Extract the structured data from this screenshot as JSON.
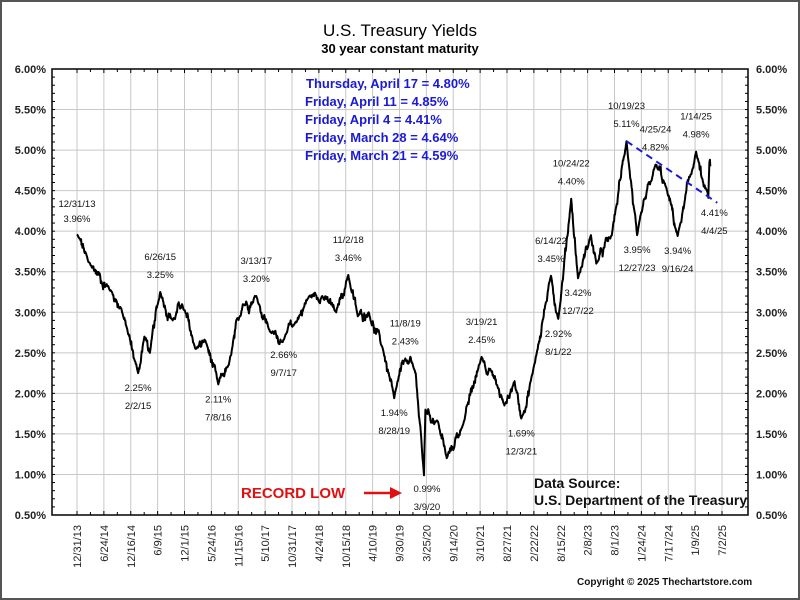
{
  "chart_data": {
    "type": "line",
    "title": "U.S. Treasury Yields",
    "subtitle": "30 year constant maturity",
    "xlabel": "",
    "ylabel": "",
    "ylim": [
      0.5,
      6.0
    ],
    "yticks": [
      "6.00%",
      "5.50%",
      "5.00%",
      "4.50%",
      "4.00%",
      "3.50%",
      "3.00%",
      "2.50%",
      "2.00%",
      "1.50%",
      "1.00%",
      "0.50%"
    ],
    "xticks": [
      "12/31/13",
      "6/24/14",
      "12/16/14",
      "6/9/15",
      "12/1/15",
      "5/24/16",
      "11/15/16",
      "5/10/17",
      "10/31/17",
      "4/24/18",
      "10/15/18",
      "4/10/19",
      "9/30/19",
      "3/25/20",
      "9/14/20",
      "3/10/21",
      "8/27/21",
      "2/22/22",
      "8/15/22",
      "2/8/23",
      "8/1/23",
      "1/24/24",
      "7/17/24",
      "1/9/25",
      "7/2/25"
    ],
    "grid": true,
    "series": [
      {
        "name": "30 year constant maturity yield (%)",
        "color": "#000000",
        "points": [
          {
            "date": "12/31/13",
            "value": 3.96
          },
          {
            "date": "3/15/14",
            "value": 3.62
          },
          {
            "date": "8/15/14",
            "value": 3.25
          },
          {
            "date": "10/15/14",
            "value": 3.05
          },
          {
            "date": "2/2/15",
            "value": 2.25
          },
          {
            "date": "3/15/15",
            "value": 2.7
          },
          {
            "date": "4/20/15",
            "value": 2.5
          },
          {
            "date": "6/26/15",
            "value": 3.25
          },
          {
            "date": "9/15/15",
            "value": 2.9
          },
          {
            "date": "11/15/15",
            "value": 3.1
          },
          {
            "date": "2/10/16",
            "value": 2.55
          },
          {
            "date": "4/15/16",
            "value": 2.65
          },
          {
            "date": "7/8/16",
            "value": 2.11
          },
          {
            "date": "9/15/16",
            "value": 2.35
          },
          {
            "date": "12/15/16",
            "value": 3.1
          },
          {
            "date": "3/13/17",
            "value": 3.2
          },
          {
            "date": "6/15/17",
            "value": 2.75
          },
          {
            "date": "9/7/17",
            "value": 2.66
          },
          {
            "date": "11/15/17",
            "value": 2.85
          },
          {
            "date": "2/21/18",
            "value": 3.2
          },
          {
            "date": "5/17/18",
            "value": 3.2
          },
          {
            "date": "8/15/18",
            "value": 3.0
          },
          {
            "date": "11/2/18",
            "value": 3.46
          },
          {
            "date": "1/3/19",
            "value": 2.95
          },
          {
            "date": "3/15/19",
            "value": 3.0
          },
          {
            "date": "6/15/19",
            "value": 2.55
          },
          {
            "date": "8/28/19",
            "value": 1.94
          },
          {
            "date": "11/8/19",
            "value": 2.43
          },
          {
            "date": "1/15/20",
            "value": 2.25
          },
          {
            "date": "3/9/20",
            "value": 0.99
          },
          {
            "date": "3/18/20",
            "value": 1.8
          },
          {
            "date": "6/8/20",
            "value": 1.65
          },
          {
            "date": "8/4/20",
            "value": 1.2
          },
          {
            "date": "11/15/20",
            "value": 1.6
          },
          {
            "date": "3/19/21",
            "value": 2.45
          },
          {
            "date": "5/15/21",
            "value": 2.3
          },
          {
            "date": "8/15/21",
            "value": 1.85
          },
          {
            "date": "10/20/21",
            "value": 2.15
          },
          {
            "date": "12/3/21",
            "value": 1.69
          },
          {
            "date": "2/15/22",
            "value": 2.25
          },
          {
            "date": "6/14/22",
            "value": 3.45
          },
          {
            "date": "8/1/22",
            "value": 2.92
          },
          {
            "date": "10/24/22",
            "value": 4.4
          },
          {
            "date": "12/7/22",
            "value": 3.42
          },
          {
            "date": "3/1/23",
            "value": 3.95
          },
          {
            "date": "4/5/23",
            "value": 3.6
          },
          {
            "date": "7/15/23",
            "value": 3.95
          },
          {
            "date": "10/19/23",
            "value": 5.11
          },
          {
            "date": "12/27/23",
            "value": 3.95
          },
          {
            "date": "4/25/24",
            "value": 4.82
          },
          {
            "date": "7/1/24",
            "value": 4.55
          },
          {
            "date": "9/16/24",
            "value": 3.94
          },
          {
            "date": "1/14/25",
            "value": 4.98
          },
          {
            "date": "3/5/25",
            "value": 4.55
          },
          {
            "date": "4/4/25",
            "value": 4.41
          },
          {
            "date": "4/11/25",
            "value": 4.85
          },
          {
            "date": "4/17/25",
            "value": 4.8
          }
        ]
      }
    ],
    "trendline": {
      "from": {
        "date": "10/19/23",
        "value": 5.11
      },
      "to": {
        "date": "6/1/25",
        "value": 4.35
      },
      "color": "#1a1ad6",
      "style": "dashed"
    },
    "annotations": [
      {
        "date": "12/31/13",
        "value_label": "3.96%",
        "position": "above"
      },
      {
        "date": "2/2/15",
        "value_label": "2.25%",
        "position": "below"
      },
      {
        "date": "6/26/15",
        "value_label": "3.25%",
        "position": "above"
      },
      {
        "date": "7/8/16",
        "value_label": "2.11%",
        "position": "below"
      },
      {
        "date": "3/13/17",
        "value_label": "3.20%",
        "position": "above"
      },
      {
        "date": "9/7/17",
        "value_label": "2.66%",
        "position": "below"
      },
      {
        "date": "11/2/18",
        "value_label": "3.46%",
        "position": "above"
      },
      {
        "date": "8/28/19",
        "value_label": "1.94%",
        "position": "below"
      },
      {
        "date": "11/8/19",
        "value_label": "2.43%",
        "position": "above"
      },
      {
        "date": "3/9/20",
        "value_label": "0.99%",
        "position": "below"
      },
      {
        "date": "3/19/21",
        "value_label": "2.45%",
        "position": "above"
      },
      {
        "date": "12/3/21",
        "value_label": "1.69%",
        "position": "below"
      },
      {
        "date": "6/14/22",
        "value_label": "3.45%",
        "position": "above"
      },
      {
        "date": "8/1/22",
        "value_label": "2.92%",
        "position": "below"
      },
      {
        "date": "10/24/22",
        "value_label": "4.40%",
        "position": "above"
      },
      {
        "date": "12/7/22",
        "value_label": "3.42%",
        "position": "below"
      },
      {
        "date": "10/19/23",
        "value_label": "5.11%",
        "position": "above"
      },
      {
        "date": "12/27/23",
        "value_label": "3.95%",
        "position": "below"
      },
      {
        "date": "4/25/24",
        "value_label": "4.82%",
        "position": "above"
      },
      {
        "date": "9/16/24",
        "value_label": "3.94%",
        "position": "below"
      },
      {
        "date": "1/14/25",
        "value_label": "4.98%",
        "position": "above"
      },
      {
        "date": "4/4/25",
        "value_label": "4.41%",
        "position": "below"
      }
    ],
    "legend": [
      "Thursday, April 17 = 4.80%",
      "Friday, April 11 = 4.85%",
      "Friday, April 4 = 4.41%",
      "Friday, March 28 = 4.64%",
      "Friday, March 21 = 4.59%"
    ],
    "legend_color": "#1a1ad6",
    "legend_position": "top-center",
    "record_low_label": "RECORD LOW",
    "record_low_color": "#e01010",
    "source_lines": [
      "Data Source:",
      "U.S. Department of the Treasury"
    ],
    "copyright": "Copyright © 2025 Thechartstore.com"
  }
}
